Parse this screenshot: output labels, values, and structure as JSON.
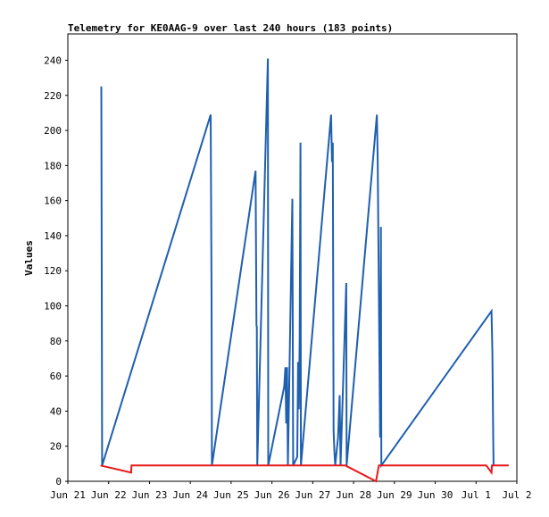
{
  "chart_data": {
    "type": "line",
    "title": "Telemetry for KE0AAG-9 over last 240 hours (183 points)",
    "ylabel": "Values",
    "xlabel": "",
    "x_ticks": [
      "Jun 21",
      "Jun 22",
      "Jun 23",
      "Jun 24",
      "Jun 25",
      "Jun 26",
      "Jun 27",
      "Jun 28",
      "Jun 29",
      "Jun 30",
      "Jul 1",
      "Jul 2"
    ],
    "y_ticks": [
      0,
      20,
      40,
      60,
      80,
      100,
      120,
      140,
      160,
      180,
      200,
      220,
      240
    ],
    "ylim": [
      0,
      255
    ],
    "xlim_days": [
      0,
      11
    ],
    "grid": false,
    "colors": {
      "blue_series": "#1f5fb0",
      "red_series": "#e8191b"
    },
    "series": [
      {
        "color": "#1f5fb0",
        "style": "spikes",
        "points": [
          [
            0.82,
            225
          ],
          [
            0.83,
            113
          ],
          [
            0.84,
            9
          ],
          [
            3.5,
            209
          ],
          [
            3.52,
            105
          ],
          [
            3.53,
            9
          ],
          [
            4.6,
            177
          ],
          [
            4.62,
            89
          ],
          [
            4.63,
            88
          ],
          [
            4.64,
            9
          ],
          [
            4.9,
            241
          ],
          [
            4.91,
            9
          ],
          [
            5.3,
            54
          ],
          [
            5.33,
            65
          ],
          [
            5.35,
            33
          ],
          [
            5.37,
            65
          ],
          [
            5.39,
            9
          ],
          [
            5.5,
            161
          ],
          [
            5.51,
            81
          ],
          [
            5.52,
            9
          ],
          [
            5.62,
            14
          ],
          [
            5.64,
            68
          ],
          [
            5.66,
            41
          ],
          [
            5.68,
            81
          ],
          [
            5.7,
            193
          ],
          [
            5.71,
            9
          ],
          [
            6.45,
            209
          ],
          [
            6.47,
            182
          ],
          [
            6.49,
            193
          ],
          [
            6.51,
            29
          ],
          [
            6.53,
            17
          ],
          [
            6.55,
            9
          ],
          [
            6.62,
            25
          ],
          [
            6.66,
            49
          ],
          [
            6.68,
            9
          ],
          [
            6.82,
            113
          ],
          [
            6.83,
            9
          ],
          [
            7.57,
            209
          ],
          [
            7.59,
            183
          ],
          [
            7.61,
            131
          ],
          [
            7.63,
            79
          ],
          [
            7.65,
            25
          ],
          [
            7.67,
            145
          ],
          [
            7.68,
            9
          ],
          [
            10.38,
            97
          ],
          [
            10.4,
            73
          ],
          [
            10.42,
            25
          ],
          [
            10.43,
            9
          ]
        ]
      },
      {
        "color": "#e8191b",
        "style": "line",
        "points": [
          [
            0.8,
            9
          ],
          [
            1.55,
            5
          ],
          [
            1.56,
            9
          ],
          [
            6.8,
            9
          ],
          [
            7.55,
            0
          ],
          [
            7.62,
            9
          ],
          [
            10.25,
            9
          ],
          [
            10.38,
            5
          ],
          [
            10.39,
            9
          ],
          [
            10.8,
            9
          ]
        ]
      }
    ]
  }
}
